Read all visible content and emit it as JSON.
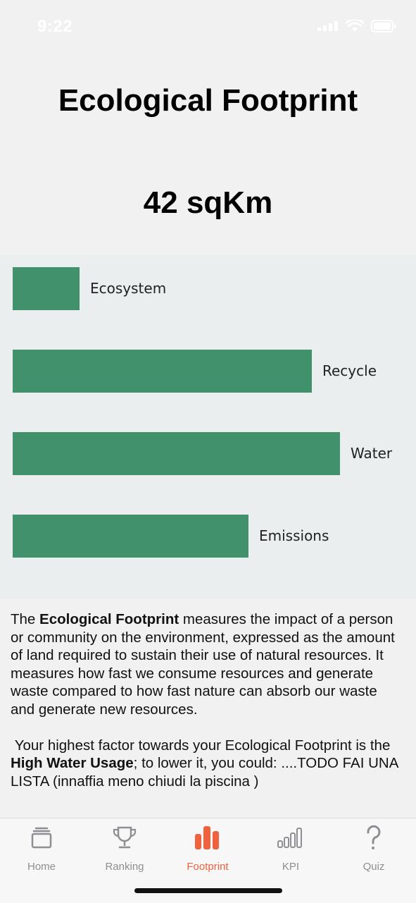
{
  "status": {
    "time": "9:22"
  },
  "header": {
    "title": "Ecological Footprint",
    "value": "42 sqKm"
  },
  "chart_data": {
    "type": "bar",
    "orientation": "horizontal",
    "categories": [
      "Ecosystem",
      "Recycle",
      "Water",
      "Emissions"
    ],
    "values": [
      19,
      85,
      93,
      67
    ],
    "max": 100
  },
  "description": {
    "p1_prefix": "The ",
    "p1_bold": "Ecological Footprint",
    "p1_rest": " measures the impact of a person or community on the environment, expressed as the amount of land required to sustain their use of natural resources. It measures how fast we consume resources and generate waste compared to how fast nature can absorb our waste and generate new resources.",
    "p2_prefix": " Your highest factor towards your Ecological Footprint is the ",
    "p2_bold": "High Water Usage",
    "p2_rest": "; to lower it, you could: ....TODO FAI UNA LISTA (innaffia meno chiudi la piscina )"
  },
  "tabs": [
    {
      "label": "Home",
      "icon": "home-icon"
    },
    {
      "label": "Ranking",
      "icon": "trophy-icon"
    },
    {
      "label": "Footprint",
      "icon": "footprint-icon"
    },
    {
      "label": "KPI",
      "icon": "kpi-icon"
    },
    {
      "label": "Quiz",
      "icon": "question-icon"
    }
  ],
  "colors": {
    "bar": "#41916c",
    "active_tab": "#f0623e",
    "inactive_tab": "#8e8e93"
  }
}
